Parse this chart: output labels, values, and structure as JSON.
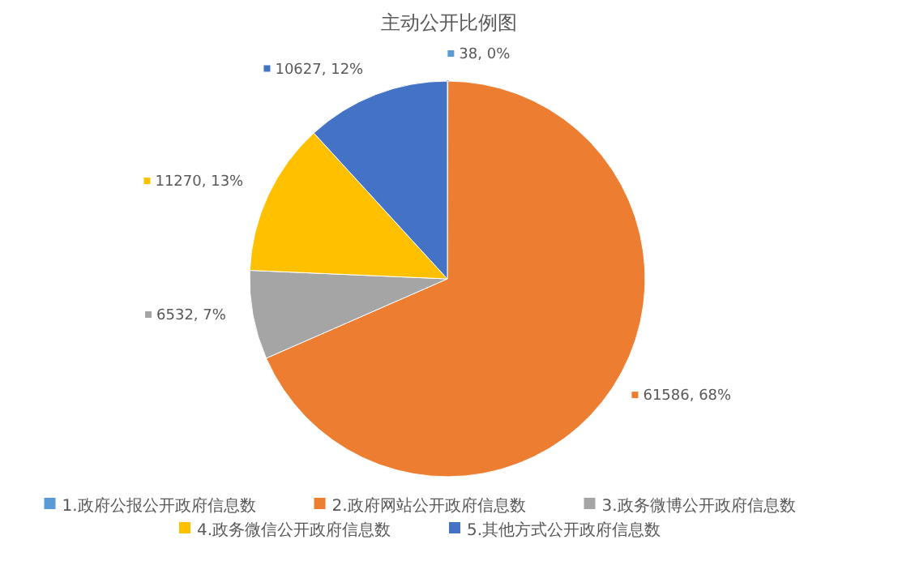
{
  "chart_data": {
    "type": "pie",
    "title": "主动公开比例图",
    "categories": [
      "1.政府公报公开政府信息数",
      "2.政府网站公开政府信息数",
      "3.政务微博公开政府信息数",
      "4.政务微信公开政府信息数",
      "5.其他方式公开政府信息数"
    ],
    "values": [
      38,
      61586,
      6532,
      11270,
      10627
    ],
    "colors": [
      "#5b9bd5",
      "#ed7d31",
      "#a5a5a5",
      "#ffc000",
      "#4472c4"
    ],
    "value_labels": [
      "38, 0%",
      "61586, 68%",
      "6532, 7%",
      "11270, 13%",
      "10627, 12%"
    ],
    "legend": "bottom"
  }
}
